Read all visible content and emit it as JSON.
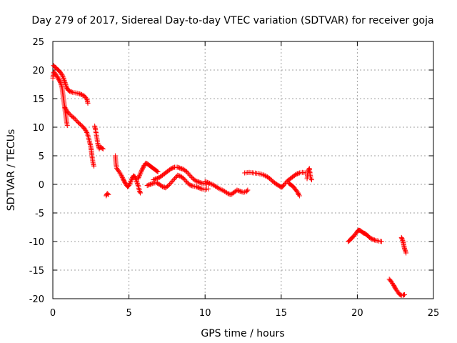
{
  "chart_data": {
    "type": "scatter",
    "title": "Day 279 of 2017, Sidereal Day-to-day VTEC variation (SDTVAR) for receiver goja",
    "xlabel": "GPS time / hours",
    "ylabel": "SDTVAR / TECUs",
    "xlim": [
      0,
      25
    ],
    "ylim": [
      -20,
      25
    ],
    "xticks": [
      0,
      5,
      10,
      15,
      20,
      25
    ],
    "yticks": [
      -20,
      -15,
      -10,
      -5,
      0,
      5,
      10,
      15,
      20,
      25
    ],
    "grid": true,
    "marker": "+",
    "marker_color": "#ff0000",
    "series": [
      {
        "name": "SDTVAR",
        "segments": [
          [
            [
              0.05,
              20.8
            ],
            [
              0.1,
              20.6
            ],
            [
              0.2,
              20.4
            ],
            [
              0.3,
              20.1
            ],
            [
              0.4,
              19.9
            ],
            [
              0.5,
              19.6
            ],
            [
              0.6,
              19.2
            ],
            [
              0.7,
              18.6
            ],
            [
              0.8,
              17.8
            ],
            [
              0.9,
              17.0
            ],
            [
              1.0,
              16.5
            ],
            [
              1.1,
              16.3
            ],
            [
              1.3,
              16.1
            ],
            [
              1.5,
              16.0
            ],
            [
              1.7,
              15.9
            ],
            [
              1.9,
              15.7
            ],
            [
              2.1,
              15.4
            ],
            [
              2.25,
              14.8
            ],
            [
              2.3,
              14.2
            ]
          ],
          [
            [
              0.0,
              18.6
            ],
            [
              0.05,
              19.6
            ],
            [
              0.1,
              19.6
            ],
            [
              0.2,
              19.2
            ],
            [
              0.3,
              18.8
            ],
            [
              0.4,
              18.3
            ],
            [
              0.5,
              17.8
            ],
            [
              0.6,
              17.0
            ],
            [
              0.65,
              16.0
            ],
            [
              0.7,
              15.0
            ],
            [
              0.75,
              14.0
            ],
            [
              0.8,
              13.0
            ],
            [
              0.85,
              12.0
            ],
            [
              0.9,
              11.0
            ],
            [
              0.95,
              10.3
            ]
          ],
          [
            [
              0.8,
              13.4
            ],
            [
              0.9,
              13.0
            ],
            [
              1.0,
              12.6
            ],
            [
              1.2,
              12.0
            ],
            [
              1.4,
              11.6
            ],
            [
              1.6,
              11.0
            ],
            [
              1.8,
              10.5
            ],
            [
              2.0,
              10.0
            ],
            [
              2.2,
              9.3
            ],
            [
              2.3,
              8.6
            ],
            [
              2.4,
              7.6
            ],
            [
              2.5,
              6.5
            ],
            [
              2.55,
              5.4
            ],
            [
              2.6,
              4.4
            ],
            [
              2.65,
              3.6
            ],
            [
              2.7,
              3.2
            ]
          ],
          [
            [
              2.75,
              10.2
            ],
            [
              2.8,
              9.6
            ],
            [
              2.85,
              8.8
            ],
            [
              2.9,
              8.0
            ],
            [
              2.95,
              7.2
            ],
            [
              3.0,
              6.6
            ],
            [
              3.05,
              6.2
            ],
            [
              3.1,
              6.4
            ],
            [
              3.15,
              6.5
            ],
            [
              3.2,
              6.4
            ],
            [
              3.3,
              6.2
            ]
          ],
          [
            [
              3.5,
              -2.0
            ],
            [
              3.55,
              -1.7
            ],
            [
              3.6,
              -1.6
            ],
            [
              3.65,
              -1.8
            ]
          ],
          [
            [
              4.1,
              5.0
            ],
            [
              4.15,
              3.5
            ],
            [
              4.2,
              2.8
            ],
            [
              4.3,
              2.4
            ],
            [
              4.4,
              2.0
            ],
            [
              4.5,
              1.6
            ],
            [
              4.6,
              1.0
            ],
            [
              4.7,
              0.5
            ],
            [
              4.8,
              0.0
            ],
            [
              4.9,
              -0.4
            ],
            [
              5.0,
              -0.2
            ],
            [
              5.1,
              0.4
            ],
            [
              5.2,
              1.0
            ],
            [
              5.3,
              1.5
            ],
            [
              5.4,
              1.3
            ],
            [
              5.5,
              0.6
            ],
            [
              5.6,
              -0.2
            ],
            [
              5.7,
              -1.2
            ],
            [
              5.75,
              -1.5
            ]
          ],
          [
            [
              5.6,
              1.0
            ],
            [
              5.7,
              1.6
            ],
            [
              5.8,
              2.2
            ],
            [
              5.9,
              2.8
            ],
            [
              6.0,
              3.3
            ],
            [
              6.1,
              3.7
            ],
            [
              6.2,
              3.6
            ],
            [
              6.3,
              3.4
            ],
            [
              6.4,
              3.2
            ],
            [
              6.5,
              3.0
            ],
            [
              6.6,
              2.8
            ],
            [
              6.7,
              2.6
            ],
            [
              6.8,
              2.4
            ],
            [
              6.9,
              2.2
            ]
          ],
          [
            [
              6.2,
              -0.2
            ],
            [
              6.4,
              0.0
            ],
            [
              6.6,
              0.2
            ],
            [
              6.8,
              0.3
            ],
            [
              7.0,
              0.0
            ],
            [
              7.2,
              -0.4
            ],
            [
              7.4,
              -0.6
            ],
            [
              7.6,
              -0.2
            ],
            [
              7.8,
              0.4
            ],
            [
              8.0,
              1.0
            ],
            [
              8.2,
              1.6
            ],
            [
              8.4,
              1.4
            ],
            [
              8.6,
              1.0
            ],
            [
              8.8,
              0.4
            ],
            [
              9.0,
              -0.1
            ],
            [
              9.2,
              -0.3
            ],
            [
              9.4,
              -0.4
            ],
            [
              9.6,
              -0.6
            ],
            [
              9.8,
              -0.8
            ],
            [
              10.0,
              -0.9
            ],
            [
              10.2,
              -0.8
            ]
          ],
          [
            [
              6.6,
              0.8
            ],
            [
              6.8,
              1.0
            ],
            [
              7.0,
              1.2
            ],
            [
              7.2,
              1.6
            ],
            [
              7.4,
              2.0
            ],
            [
              7.6,
              2.4
            ],
            [
              7.8,
              2.8
            ],
            [
              8.0,
              3.0
            ],
            [
              8.2,
              3.0
            ],
            [
              8.4,
              2.8
            ],
            [
              8.6,
              2.6
            ],
            [
              8.8,
              2.2
            ],
            [
              9.0,
              1.6
            ],
            [
              9.2,
              1.0
            ],
            [
              9.4,
              0.6
            ],
            [
              9.6,
              0.4
            ],
            [
              9.8,
              0.2
            ],
            [
              10.0,
              0.1
            ],
            [
              10.2,
              0.0
            ]
          ],
          [
            [
              10.0,
              0.5
            ],
            [
              10.3,
              0.2
            ],
            [
              10.6,
              -0.2
            ],
            [
              10.9,
              -0.7
            ],
            [
              11.2,
              -1.1
            ],
            [
              11.5,
              -1.6
            ],
            [
              11.7,
              -1.8
            ],
            [
              11.9,
              -1.4
            ],
            [
              12.1,
              -1.0
            ],
            [
              12.3,
              -1.2
            ],
            [
              12.5,
              -1.4
            ],
            [
              12.7,
              -1.3
            ],
            [
              12.8,
              -1.0
            ]
          ],
          [
            [
              12.6,
              2.0
            ],
            [
              12.9,
              2.1
            ],
            [
              13.2,
              2.0
            ],
            [
              13.5,
              1.9
            ],
            [
              13.8,
              1.7
            ],
            [
              14.1,
              1.3
            ],
            [
              14.3,
              0.9
            ],
            [
              14.5,
              0.4
            ],
            [
              14.7,
              0.0
            ],
            [
              14.9,
              -0.3
            ],
            [
              15.0,
              -0.5
            ],
            [
              15.1,
              -0.4
            ],
            [
              15.2,
              0.0
            ],
            [
              15.4,
              0.6
            ],
            [
              15.6,
              1.0
            ],
            [
              15.8,
              1.4
            ],
            [
              16.0,
              1.8
            ],
            [
              16.2,
              2.0
            ],
            [
              16.4,
              2.1
            ],
            [
              16.6,
              2.0
            ]
          ],
          [
            [
              15.5,
              0.2
            ],
            [
              15.6,
              0.0
            ],
            [
              15.7,
              -0.2
            ],
            [
              15.8,
              -0.4
            ],
            [
              15.9,
              -0.8
            ],
            [
              16.0,
              -1.1
            ],
            [
              16.1,
              -1.5
            ],
            [
              16.15,
              -1.8
            ],
            [
              16.2,
              -2.0
            ]
          ],
          [
            [
              16.7,
              1.0
            ],
            [
              16.75,
              2.0
            ],
            [
              16.8,
              2.6
            ],
            [
              16.85,
              2.8
            ],
            [
              16.9,
              1.8
            ],
            [
              16.95,
              1.0
            ],
            [
              17.0,
              0.8
            ]
          ],
          [
            [
              19.4,
              -10.0
            ],
            [
              19.5,
              -9.8
            ],
            [
              19.6,
              -9.5
            ],
            [
              19.7,
              -9.2
            ],
            [
              19.8,
              -9.0
            ],
            [
              19.9,
              -8.6
            ],
            [
              20.0,
              -8.2
            ],
            [
              20.1,
              -8.0
            ],
            [
              20.2,
              -8.1
            ],
            [
              20.3,
              -8.3
            ],
            [
              20.4,
              -8.5
            ],
            [
              20.5,
              -8.6
            ],
            [
              20.6,
              -8.8
            ],
            [
              20.7,
              -9.0
            ],
            [
              20.8,
              -9.3
            ],
            [
              21.0,
              -9.6
            ],
            [
              21.2,
              -9.8
            ],
            [
              21.4,
              -9.9
            ],
            [
              21.6,
              -10.0
            ]
          ],
          [
            [
              22.9,
              -9.3
            ],
            [
              22.95,
              -9.6
            ],
            [
              23.0,
              -10.0
            ],
            [
              23.05,
              -10.6
            ],
            [
              23.1,
              -11.2
            ],
            [
              23.15,
              -11.6
            ],
            [
              23.2,
              -12.0
            ]
          ],
          [
            [
              22.1,
              -16.6
            ],
            [
              22.2,
              -16.9
            ],
            [
              22.3,
              -17.3
            ],
            [
              22.4,
              -17.7
            ],
            [
              22.5,
              -18.2
            ],
            [
              22.6,
              -18.6
            ],
            [
              22.7,
              -19.0
            ],
            [
              22.8,
              -19.3
            ],
            [
              22.9,
              -19.4
            ],
            [
              23.0,
              -19.4
            ],
            [
              23.1,
              -19.3
            ]
          ]
        ]
      }
    ]
  }
}
